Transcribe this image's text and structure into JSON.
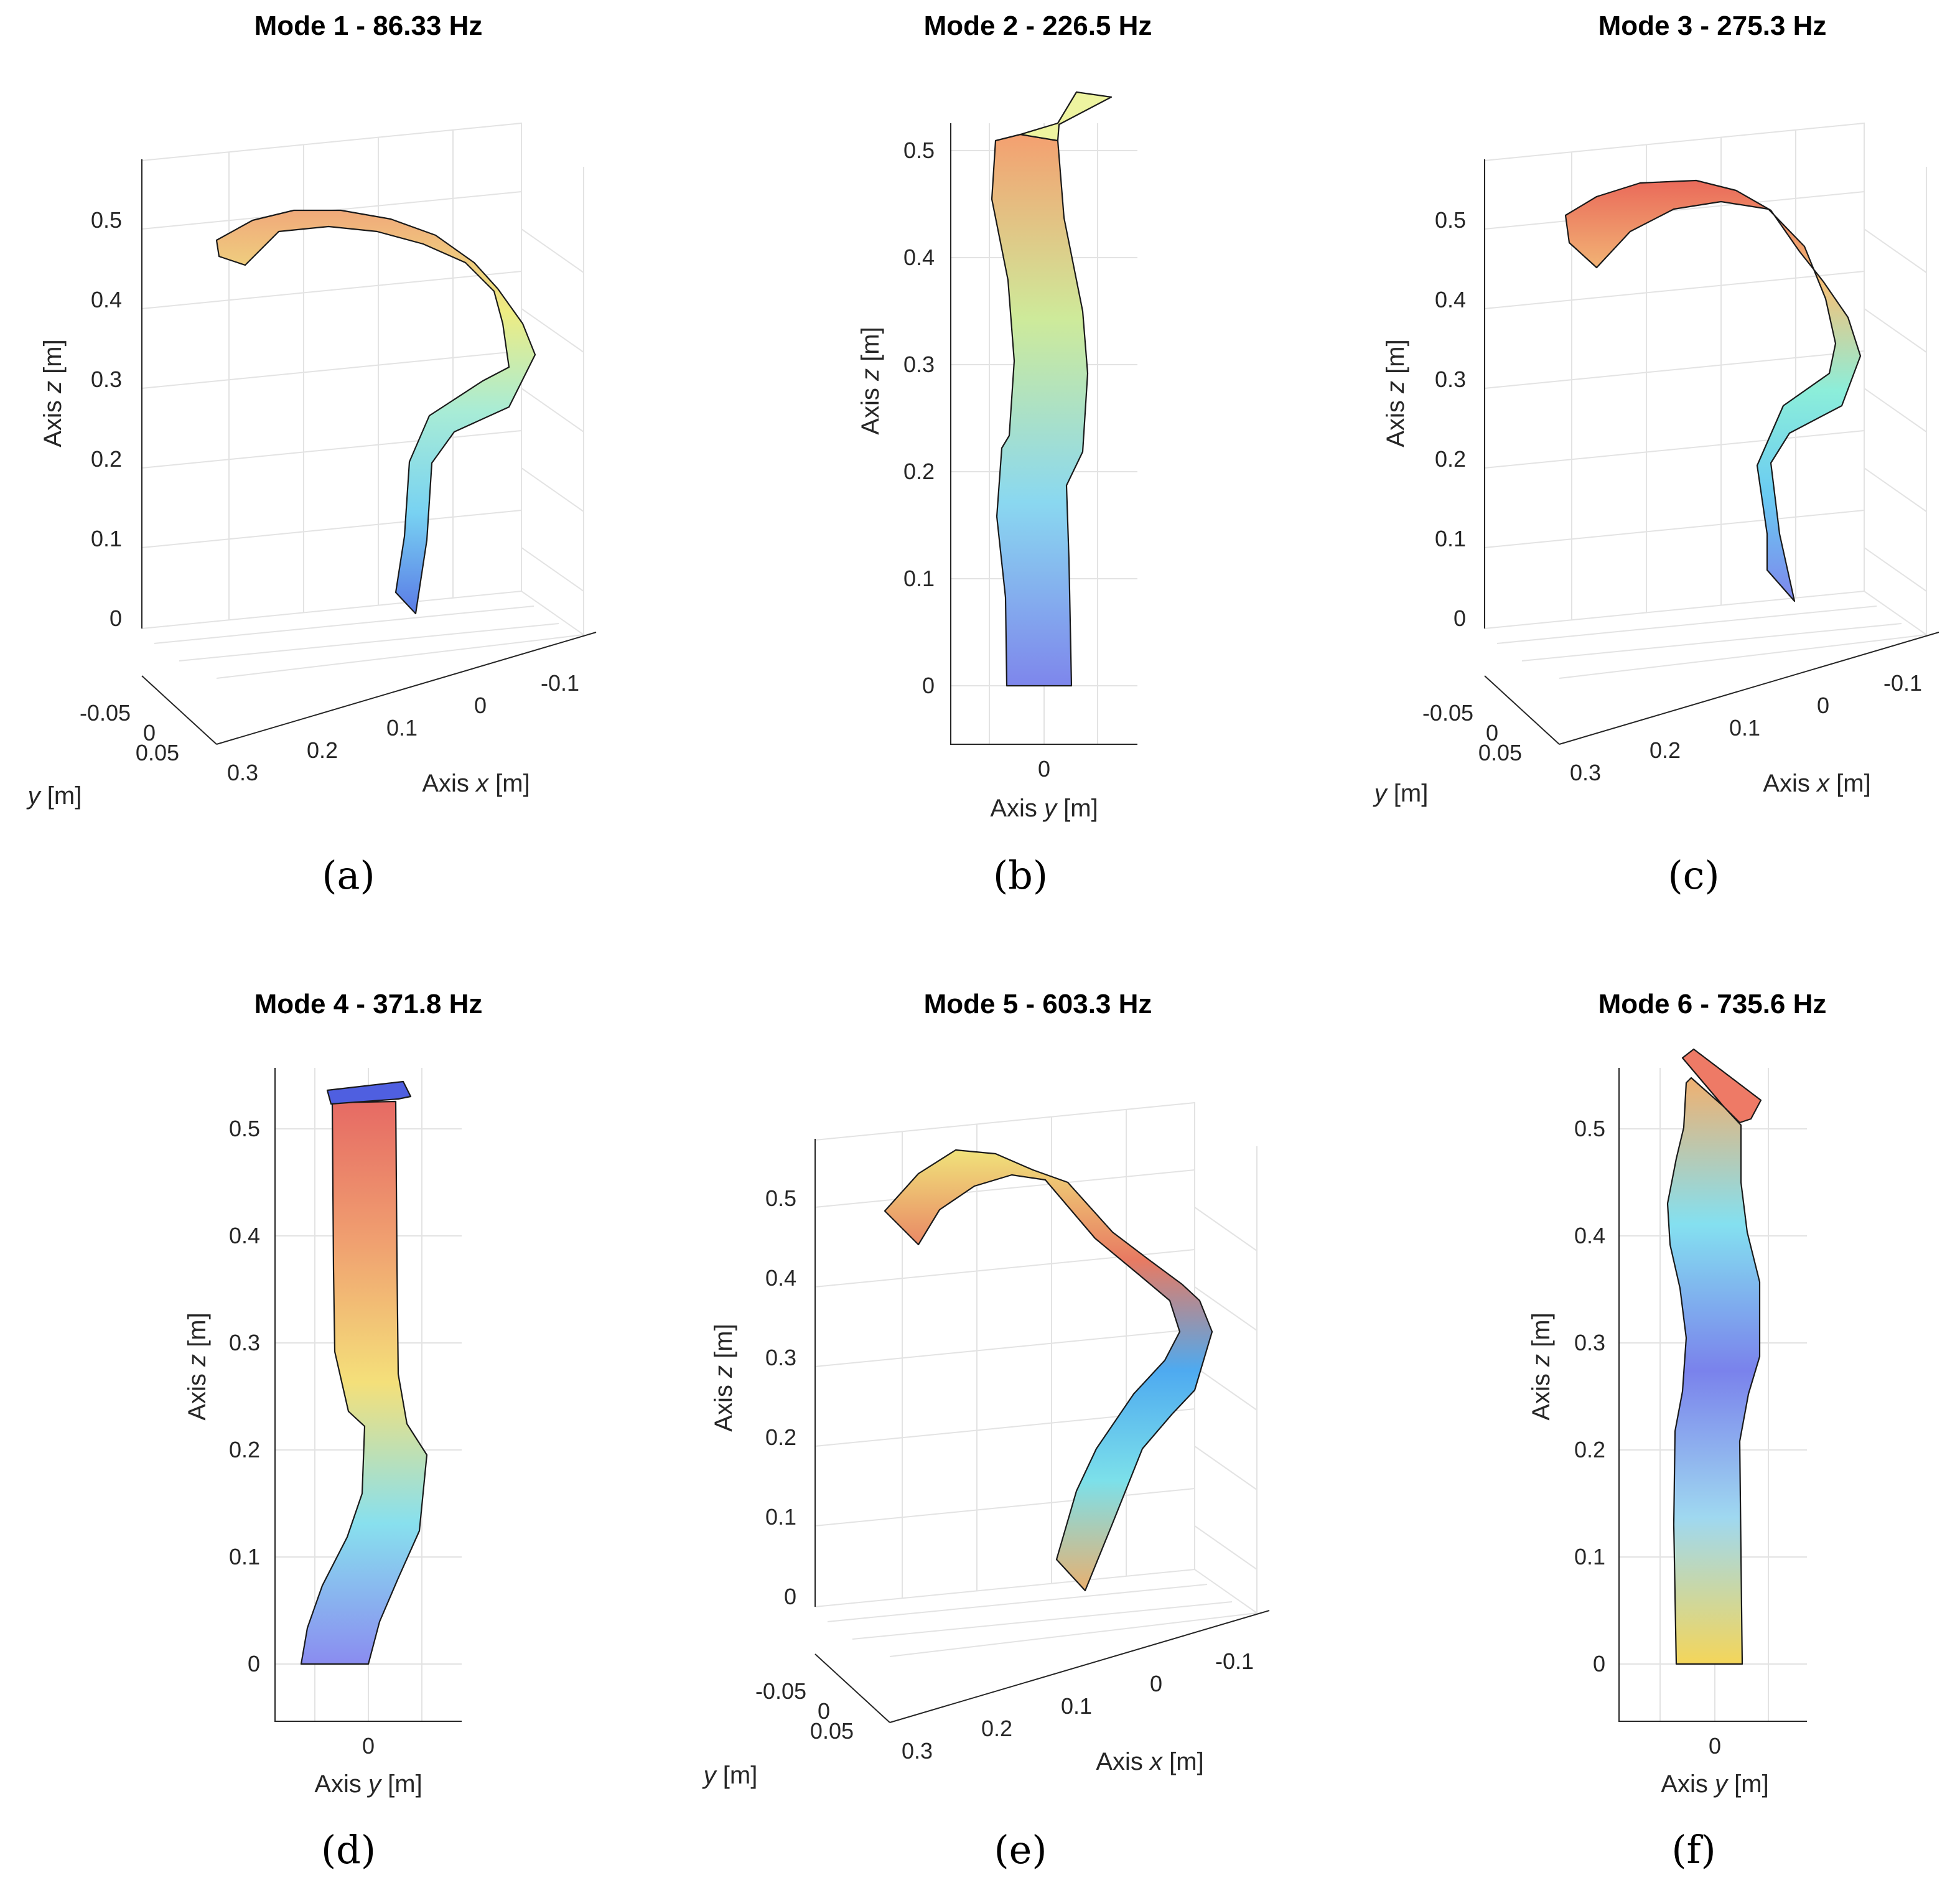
{
  "chart_data": [
    {
      "panel": "(a)",
      "type": "3d-surface-mode-shape",
      "view": "3d",
      "title": "Mode 1 - 86.33 Hz",
      "mode": 1,
      "frequency_hz": 86.33,
      "zlabel": "Axis z [m]",
      "xlabel": "Axis x [m]",
      "ylabel": "y [m]",
      "z_ticks": [
        "0",
        "0.1",
        "0.2",
        "0.3",
        "0.4",
        "0.5"
      ],
      "x_ticks": [
        "-0.1",
        "0",
        "0.1",
        "0.2",
        "0.3"
      ],
      "y_ticks": [
        "-0.05",
        "0",
        "0.05"
      ],
      "zlim": [
        0,
        0.55
      ],
      "colors": [
        "#5a7ae6",
        "#78d2f2",
        "#a8ecd6",
        "#eeec82",
        "#f0a97a"
      ]
    },
    {
      "panel": "(b)",
      "type": "2d-projection-mode-shape",
      "view": "y-z",
      "title": "Mode 2 - 226.5 Hz",
      "mode": 2,
      "frequency_hz": 226.5,
      "zlabel": "Axis z [m]",
      "xlabel": "Axis y [m]",
      "z_ticks": [
        "0",
        "0.1",
        "0.2",
        "0.3",
        "0.4",
        "0.5"
      ],
      "y_ticks": [
        "0"
      ],
      "zlim": [
        -0.05,
        0.55
      ],
      "colors": [
        "#7e86ec",
        "#8ad8f0",
        "#ceea9a",
        "#f4a070"
      ]
    },
    {
      "panel": "(c)",
      "type": "3d-surface-mode-shape",
      "view": "3d",
      "title": "Mode 3 - 275.3 Hz",
      "mode": 3,
      "frequency_hz": 275.3,
      "zlabel": "Axis z [m]",
      "xlabel": "Axis x [m]",
      "ylabel": "y [m]",
      "z_ticks": [
        "0",
        "0.1",
        "0.2",
        "0.3",
        "0.4",
        "0.5"
      ],
      "x_ticks": [
        "-0.1",
        "0",
        "0.1",
        "0.2",
        "0.3"
      ],
      "y_ticks": [
        "-0.05",
        "0",
        "0.05"
      ],
      "zlim": [
        0,
        0.55
      ],
      "colors": [
        "#7e86ec",
        "#6acbf2",
        "#8ceeda",
        "#f3c27a",
        "#ea6a5a"
      ]
    },
    {
      "panel": "(d)",
      "type": "2d-projection-mode-shape",
      "view": "y-z",
      "title": "Mode 4 - 371.8 Hz",
      "mode": 4,
      "frequency_hz": 371.8,
      "zlabel": "Axis z [m]",
      "xlabel": "Axis y [m]",
      "z_ticks": [
        "0",
        "0.1",
        "0.2",
        "0.3",
        "0.4",
        "0.5"
      ],
      "y_ticks": [
        "0"
      ],
      "zlim": [
        -0.05,
        0.55
      ],
      "colors": [
        "#8a8cf0",
        "#88e0ee",
        "#f4e07a",
        "#f0a070",
        "#e66a64"
      ]
    },
    {
      "panel": "(e)",
      "type": "3d-surface-mode-shape",
      "view": "3d",
      "title": "Mode 5 - 603.3 Hz",
      "mode": 5,
      "frequency_hz": 603.3,
      "zlabel": "Axis z [m]",
      "xlabel": "Axis x [m]",
      "ylabel": "y [m]",
      "z_ticks": [
        "0",
        "0.1",
        "0.2",
        "0.3",
        "0.4",
        "0.5"
      ],
      "x_ticks": [
        "-0.1",
        "0",
        "0.1",
        "0.2",
        "0.3"
      ],
      "y_ticks": [
        "-0.05",
        "0",
        "0.05"
      ],
      "zlim": [
        0,
        0.55
      ],
      "colors": [
        "#e8b070",
        "#7ce0ea",
        "#4eaaf0",
        "#e87a62",
        "#f0e27a"
      ]
    },
    {
      "panel": "(f)",
      "type": "2d-projection-mode-shape",
      "view": "y-z",
      "title": "Mode 6 - 735.6 Hz",
      "mode": 6,
      "frequency_hz": 735.6,
      "zlabel": "Axis z [m]",
      "xlabel": "Axis y [m]",
      "z_ticks": [
        "0",
        "0.1",
        "0.2",
        "0.3",
        "0.4",
        "0.5"
      ],
      "y_ticks": [
        "0"
      ],
      "zlim": [
        -0.05,
        0.55
      ],
      "colors": [
        "#f4d65a",
        "#9fd8f0",
        "#7a82ec",
        "#84e0f0",
        "#f0b070"
      ]
    }
  ],
  "axis_text": {
    "axis_word": "Axis",
    "z": "z",
    "x": "x",
    "y": "y",
    "unit": "[m]"
  }
}
